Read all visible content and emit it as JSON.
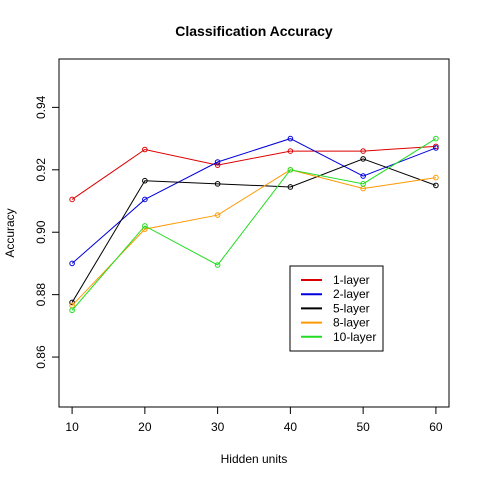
{
  "chart_data": {
    "type": "line",
    "title": "Classification Accuracy",
    "xlabel": "Hidden units",
    "ylabel": "Accuracy",
    "x": [
      10,
      20,
      30,
      40,
      50,
      60
    ],
    "xticks": [
      "10",
      "20",
      "30",
      "40",
      "50",
      "60"
    ],
    "yticks": [
      "0.86",
      "0.88",
      "0.90",
      "0.92",
      "0.94"
    ],
    "ytick_values": [
      0.86,
      0.88,
      0.9,
      0.92,
      0.94
    ],
    "xlim": [
      8.2,
      61.8
    ],
    "ylim": [
      0.844,
      0.9555
    ],
    "grid": false,
    "legend_position": "bottom-right",
    "series": [
      {
        "name": "1-layer",
        "color": "#dd0000",
        "values": [
          0.9105,
          0.9265,
          0.9215,
          0.926,
          0.926,
          0.9275
        ]
      },
      {
        "name": "2-layer",
        "color": "#0000dd",
        "values": [
          0.89,
          0.9105,
          0.9225,
          0.93,
          0.918,
          0.927
        ]
      },
      {
        "name": "5-layer",
        "color": "#000000",
        "values": [
          0.8775,
          0.9165,
          0.9155,
          0.9145,
          0.9235,
          0.915
        ]
      },
      {
        "name": "8-layer",
        "color": "#ff9900",
        "values": [
          0.8765,
          0.901,
          0.9055,
          0.92,
          0.914,
          0.9175
        ]
      },
      {
        "name": "10-layer",
        "color": "#22dd22",
        "values": [
          0.875,
          0.902,
          0.8895,
          0.92,
          0.9155,
          0.93
        ]
      }
    ]
  }
}
